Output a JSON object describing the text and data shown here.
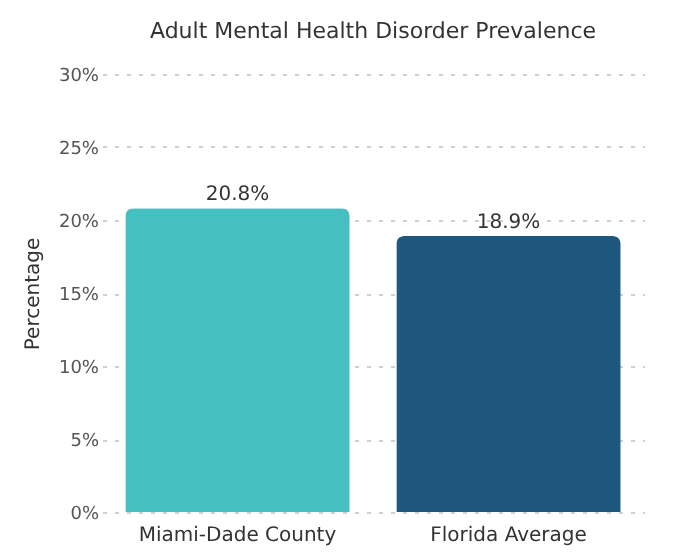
{
  "chart_data": {
    "type": "bar",
    "title": "Adult Mental Health Disorder Prevalence",
    "ylabel": "Percentage",
    "categories": [
      "Miami-Dade County",
      "Florida Average"
    ],
    "values": [
      20.8,
      18.9
    ],
    "colors": [
      "#45bfc0",
      "#1f587f"
    ],
    "value_labels": [
      "20.8%",
      "18.9%"
    ],
    "ylim": [
      0,
      30
    ],
    "yticks": [
      {
        "value": 0,
        "label": "0%"
      },
      {
        "value": 5,
        "label": "5%"
      },
      {
        "value": 10,
        "label": "10%"
      },
      {
        "value": 15,
        "label": "15%"
      },
      {
        "value": 20,
        "label": "20%"
      },
      {
        "value": 25,
        "label": "25%"
      },
      {
        "value": 30,
        "label": "30%"
      }
    ],
    "grid": "y"
  }
}
